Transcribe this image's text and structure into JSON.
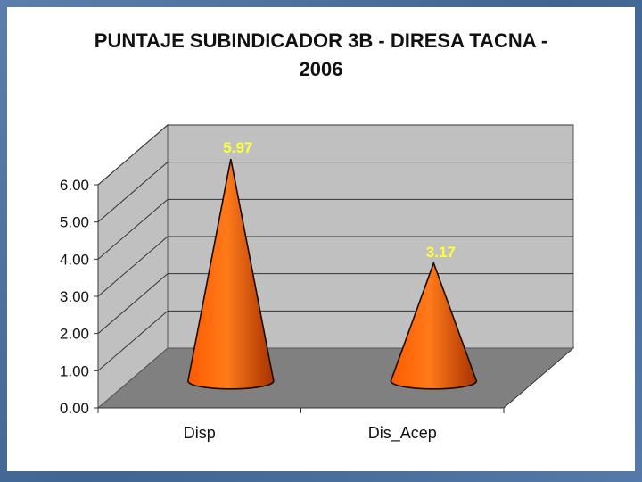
{
  "chart_data": {
    "type": "bar",
    "style": "3d-cone",
    "title_lines": [
      "PUNTAJE SUBINDICADOR 3B - DIRESA TACNA -",
      "2006"
    ],
    "categories": [
      "Disp",
      "Dis_Acep"
    ],
    "values": [
      5.97,
      3.17
    ],
    "data_labels": [
      "5.97",
      "3.17"
    ],
    "ylim": [
      0,
      6
    ],
    "yticks": [
      "0.00",
      "1.00",
      "2.00",
      "3.00",
      "4.00",
      "5.00",
      "6.00"
    ],
    "grid": true,
    "legend": "none",
    "colors": {
      "bar": "#ff6a00",
      "bar_dark": "#b83a00",
      "wall": "#c0c0c0",
      "floor": "#808080",
      "label": "#ffff33"
    }
  }
}
